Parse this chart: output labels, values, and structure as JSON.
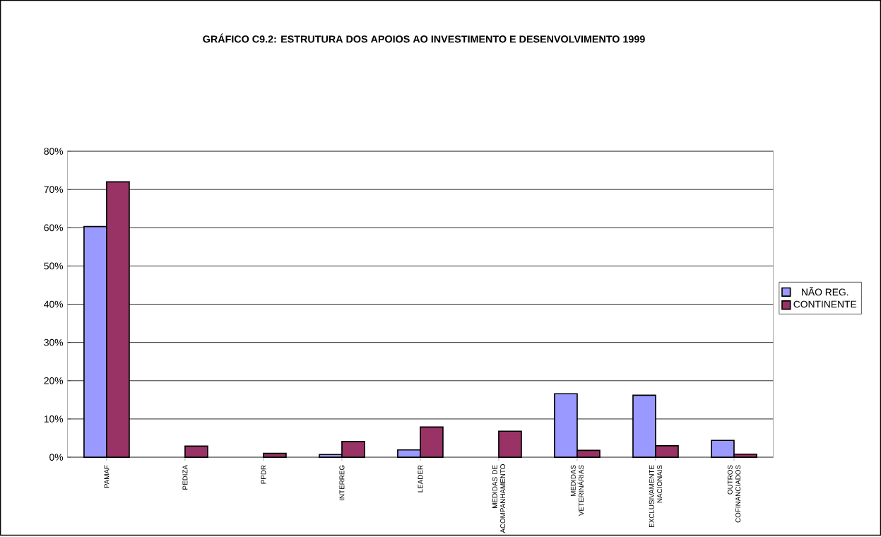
{
  "chart_data": {
    "type": "bar",
    "title": "GRÁFICO C9.2: ESTRUTURA DOS APOIOS AO INVESTIMENTO E DESENVOLVIMENTO 1999",
    "categories": [
      "PAMAF",
      "PEDIZA",
      "PPDR",
      "INTERREG",
      "LEADER",
      "MEDIDAS DE ACOMPANHAMENTO",
      "MEDIDAS VETERINÁRIAS",
      "EXCLUSIVAMENTE NACIONAIS",
      "OUTROS COFINANCIADOS"
    ],
    "series": [
      {
        "name": "NÃO REG.",
        "color": "#9999ff",
        "values": [
          60.3,
          null,
          null,
          0.7,
          1.9,
          null,
          16.6,
          16.2,
          4.4
        ]
      },
      {
        "name": "CONTINENTE",
        "color": "#993366",
        "values": [
          72,
          2.9,
          1.0,
          4.1,
          7.9,
          6.8,
          1.8,
          3.0,
          0.8
        ]
      }
    ],
    "ylim": [
      0,
      80
    ],
    "yticks": [
      {
        "value": 0,
        "label": "0%"
      },
      {
        "value": 10,
        "label": "10%"
      },
      {
        "value": 20,
        "label": "20%"
      },
      {
        "value": 30,
        "label": "30%"
      },
      {
        "value": 40,
        "label": "40%"
      },
      {
        "value": 50,
        "label": "50%"
      },
      {
        "value": 60,
        "label": "60%"
      },
      {
        "value": 70,
        "label": "70%"
      },
      {
        "value": 80,
        "label": "80%"
      }
    ],
    "grid": "y",
    "legend": "right"
  }
}
